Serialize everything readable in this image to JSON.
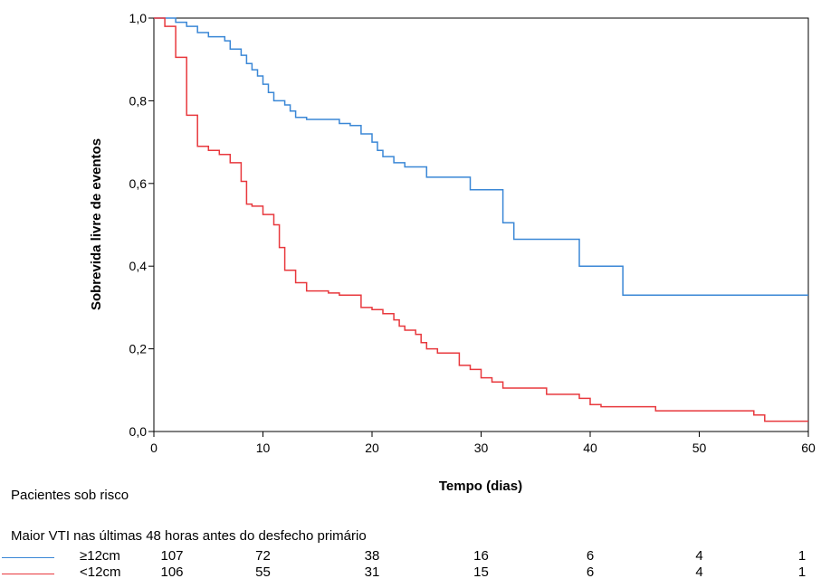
{
  "chart_data": {
    "type": "line",
    "step": true,
    "xlabel": "Tempo (dias)",
    "ylabel": "Sobrevida livre de eventos",
    "xlim": [
      0,
      60
    ],
    "ylim": [
      0,
      1
    ],
    "x_ticks": [
      0,
      10,
      20,
      30,
      40,
      50,
      60
    ],
    "x_tick_labels": [
      "0",
      "10",
      "20",
      "30",
      "40",
      "50",
      "60"
    ],
    "y_ticks": [
      0,
      0.2,
      0.4,
      0.6,
      0.8,
      1.0
    ],
    "y_tick_labels": [
      "0,0",
      "0,2",
      "0,4",
      "0,6",
      "0,8",
      "1,0"
    ],
    "grid": false,
    "series": [
      {
        "name": "≥12cm",
        "color": "#3a87d6",
        "points": [
          [
            0,
            1.0
          ],
          [
            2,
            0.99
          ],
          [
            3,
            0.98
          ],
          [
            4,
            0.965
          ],
          [
            5,
            0.955
          ],
          [
            6,
            0.955
          ],
          [
            6.5,
            0.945
          ],
          [
            7,
            0.925
          ],
          [
            8,
            0.91
          ],
          [
            8.5,
            0.89
          ],
          [
            9,
            0.875
          ],
          [
            9.5,
            0.86
          ],
          [
            10,
            0.84
          ],
          [
            10.5,
            0.82
          ],
          [
            11,
            0.8
          ],
          [
            12,
            0.79
          ],
          [
            12.5,
            0.775
          ],
          [
            13,
            0.76
          ],
          [
            14,
            0.755
          ],
          [
            17,
            0.745
          ],
          [
            18,
            0.74
          ],
          [
            19,
            0.72
          ],
          [
            20,
            0.7
          ],
          [
            20.5,
            0.68
          ],
          [
            21,
            0.665
          ],
          [
            22,
            0.65
          ],
          [
            23,
            0.64
          ],
          [
            25,
            0.615
          ],
          [
            29,
            0.585
          ],
          [
            32,
            0.505
          ],
          [
            33,
            0.465
          ],
          [
            39,
            0.4
          ],
          [
            43,
            0.33
          ],
          [
            60,
            0.33
          ]
        ]
      },
      {
        "name": "<12cm",
        "color": "#e8383d",
        "points": [
          [
            0,
            1.0
          ],
          [
            1,
            0.98
          ],
          [
            2,
            0.905
          ],
          [
            3,
            0.765
          ],
          [
            4,
            0.69
          ],
          [
            5,
            0.68
          ],
          [
            6,
            0.67
          ],
          [
            7,
            0.65
          ],
          [
            8,
            0.605
          ],
          [
            8.5,
            0.55
          ],
          [
            9,
            0.545
          ],
          [
            10,
            0.525
          ],
          [
            11,
            0.5
          ],
          [
            11.5,
            0.445
          ],
          [
            12,
            0.39
          ],
          [
            13,
            0.36
          ],
          [
            14,
            0.34
          ],
          [
            16,
            0.335
          ],
          [
            17,
            0.33
          ],
          [
            19,
            0.3
          ],
          [
            20,
            0.295
          ],
          [
            21,
            0.285
          ],
          [
            22,
            0.27
          ],
          [
            22.5,
            0.255
          ],
          [
            23,
            0.245
          ],
          [
            24,
            0.235
          ],
          [
            24.5,
            0.215
          ],
          [
            25,
            0.2
          ],
          [
            26,
            0.19
          ],
          [
            28,
            0.16
          ],
          [
            29,
            0.15
          ],
          [
            30,
            0.13
          ],
          [
            31,
            0.12
          ],
          [
            32,
            0.105
          ],
          [
            36,
            0.09
          ],
          [
            39,
            0.08
          ],
          [
            40,
            0.065
          ],
          [
            41,
            0.06
          ],
          [
            46,
            0.05
          ],
          [
            55,
            0.04
          ],
          [
            56,
            0.025
          ],
          [
            60,
            0.025
          ]
        ]
      }
    ]
  },
  "risk_table": {
    "heading": "Pacientes sob risco",
    "subheading": "Maior VTI nas últimas 48 horas antes do desfecho primário",
    "time_points": [
      0,
      10,
      20,
      30,
      40,
      50,
      60
    ],
    "rows": [
      {
        "label": "≥12cm",
        "color": "#3a87d6",
        "counts": [
          "107",
          "72",
          "38",
          "16",
          "6",
          "4",
          "1"
        ]
      },
      {
        "label": "<12cm",
        "color": "#e8383d",
        "counts": [
          "106",
          "55",
          "31",
          "15",
          "6",
          "4",
          "1"
        ]
      }
    ]
  }
}
